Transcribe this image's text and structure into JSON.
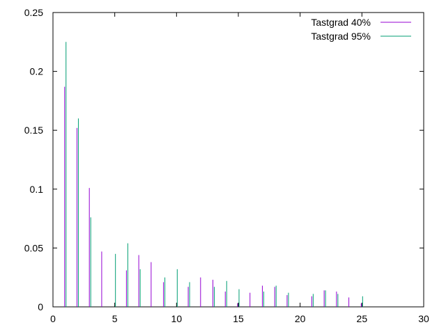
{
  "chart_data": {
    "type": "bar",
    "title": "",
    "xlabel": "",
    "ylabel": "",
    "xlim": [
      0,
      30
    ],
    "ylim": [
      0,
      0.25
    ],
    "xticks": [
      0,
      5,
      10,
      15,
      20,
      25,
      30
    ],
    "xtick_labels": [
      "0",
      "5",
      "10",
      "15",
      "20",
      "25",
      "30"
    ],
    "yticks": [
      0,
      0.05,
      0.1,
      0.15,
      0.2,
      0.25
    ],
    "ytick_labels": [
      "0",
      "0.05",
      "0.1",
      "0.15",
      "0.2",
      "0.25"
    ],
    "grid": false,
    "legend_position": "top-right",
    "series": [
      {
        "name": "Tastgrad 40%",
        "color": "#9400d3",
        "points": [
          [
            1,
            0.187
          ],
          [
            2,
            0.152
          ],
          [
            3,
            0.101
          ],
          [
            4,
            0.047
          ],
          [
            6,
            0.031
          ],
          [
            7,
            0.044
          ],
          [
            8,
            0.038
          ],
          [
            9,
            0.021
          ],
          [
            11,
            0.017
          ],
          [
            12,
            0.025
          ],
          [
            13,
            0.023
          ],
          [
            14,
            0.013
          ],
          [
            15,
            0.003
          ],
          [
            16,
            0.012
          ],
          [
            17,
            0.018
          ],
          [
            18,
            0.017
          ],
          [
            19,
            0.01
          ],
          [
            21,
            0.009
          ],
          [
            22,
            0.014
          ],
          [
            23,
            0.013
          ],
          [
            24,
            0.008
          ],
          [
            25,
            0.003
          ]
        ]
      },
      {
        "name": "Tastgrad 95%",
        "color": "#009e73",
        "points": [
          [
            1,
            0.225
          ],
          [
            2,
            0.16
          ],
          [
            3,
            0.076
          ],
          [
            5,
            0.045
          ],
          [
            6,
            0.054
          ],
          [
            7,
            0.032
          ],
          [
            9,
            0.025
          ],
          [
            10,
            0.032
          ],
          [
            11,
            0.021
          ],
          [
            13,
            0.017
          ],
          [
            14,
            0.022
          ],
          [
            15,
            0.015
          ],
          [
            17,
            0.013
          ],
          [
            18,
            0.018
          ],
          [
            19,
            0.012
          ],
          [
            21,
            0.011
          ],
          [
            22,
            0.014
          ],
          [
            23,
            0.011
          ],
          [
            25,
            0.009
          ]
        ]
      }
    ]
  }
}
